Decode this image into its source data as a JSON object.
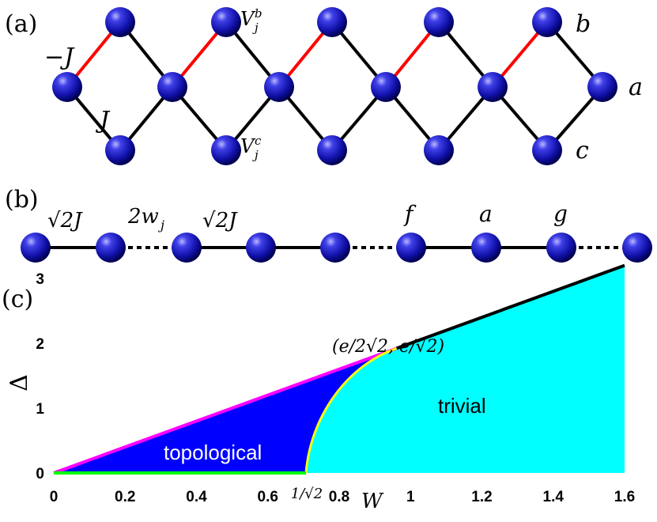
{
  "panel_a": {
    "label": "(a)",
    "coupling_neg": "−J",
    "coupling_pos": "J",
    "site_b_top": "V",
    "site_b_sup": "b",
    "site_b_sub": "j",
    "site_c_top": "V",
    "site_c_sup": "c",
    "site_c_sub": "j",
    "label_b": "b",
    "label_a": "a",
    "label_c": "c",
    "colors": {
      "site": "#1a1ac8",
      "bond": "#000000",
      "red_bond": "#ff0000"
    }
  },
  "panel_b": {
    "label": "(b)",
    "hop1": "√2J",
    "hop_mid": "2w",
    "hop_mid_sub": "j",
    "hop2": "√2J",
    "site_f": "f",
    "site_a": "a",
    "site_g": "g"
  },
  "panel_c": {
    "label": "(c)",
    "annotation": "(e/2√2, e/√2)",
    "region_topological": "topological",
    "region_trivial": "trivial",
    "ylabel": "Δ",
    "xlabel": "W",
    "x_special_tick": "1/√2",
    "colors": {
      "topological": "#0000ff",
      "trivial": "#00ffff",
      "upper_boundary": "#ff00ff",
      "phase_boundary": "#ffff00",
      "bottom_line": "#00ff00",
      "top_line": "#000000"
    }
  },
  "chart_data": {
    "type": "area",
    "xlabel": "W",
    "ylabel": "Δ",
    "xlim": [
      0,
      1.6
    ],
    "ylim": [
      0,
      3.3
    ],
    "xticks": [
      "0",
      "0.2",
      "0.4",
      "0.6",
      "0.8",
      "1",
      "1.2",
      "1.4",
      "1.6"
    ],
    "xtick_values": [
      0,
      0.2,
      0.4,
      0.6,
      0.8,
      1.0,
      1.2,
      1.4,
      1.6
    ],
    "yticks": [
      "0",
      "1",
      "2",
      "3"
    ],
    "ytick_values": [
      0,
      1,
      2,
      3
    ],
    "series": [
      {
        "name": "topological",
        "x": [
          0,
          0.961
        ],
        "y": [
          0,
          1.922
        ]
      },
      {
        "name": "trivial",
        "x": [
          0.707,
          0.961,
          1.6
        ],
        "y": [
          0,
          1.922,
          3.2
        ]
      }
    ],
    "critical_point": {
      "x": 0.961,
      "y": 1.922
    },
    "boundary_start_x": 0.707
  }
}
